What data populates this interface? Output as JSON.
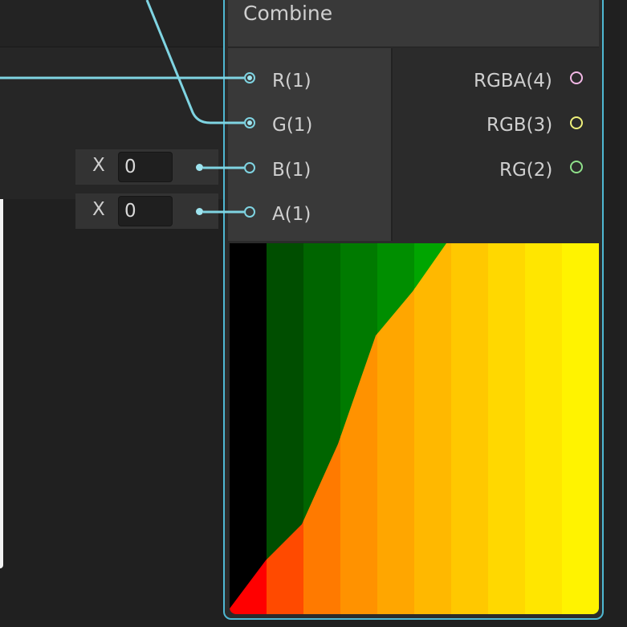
{
  "node": {
    "title": "Combine",
    "inputs": [
      {
        "label": "R(1)",
        "connected": true
      },
      {
        "label": "G(1)",
        "connected": true
      },
      {
        "label": "B(1)",
        "connected": false
      },
      {
        "label": "A(1)",
        "connected": false
      }
    ],
    "outputs": [
      {
        "label": "RGBA(4)",
        "color": "#f3b8e6"
      },
      {
        "label": "RGB(3)",
        "color": "#eef07a"
      },
      {
        "label": "RG(2)",
        "color": "#8fe08a"
      }
    ]
  },
  "default_fields": [
    {
      "axis": "X",
      "value": "0"
    },
    {
      "axis": "X",
      "value": "0"
    }
  ],
  "colors": {
    "wire": "#7fd4e2",
    "node_border": "#4fb8d2",
    "preview_lower": [
      "#ff0000",
      "#ff4a00",
      "#ff7a00",
      "#ff9200",
      "#ffa600",
      "#ffb800",
      "#ffc800",
      "#ffd800",
      "#ffe600",
      "#fff300"
    ],
    "preview_upper": [
      "#000000",
      "#004e00",
      "#006500",
      "#007a00",
      "#008e00",
      "#00a500",
      "#00bd00"
    ]
  }
}
